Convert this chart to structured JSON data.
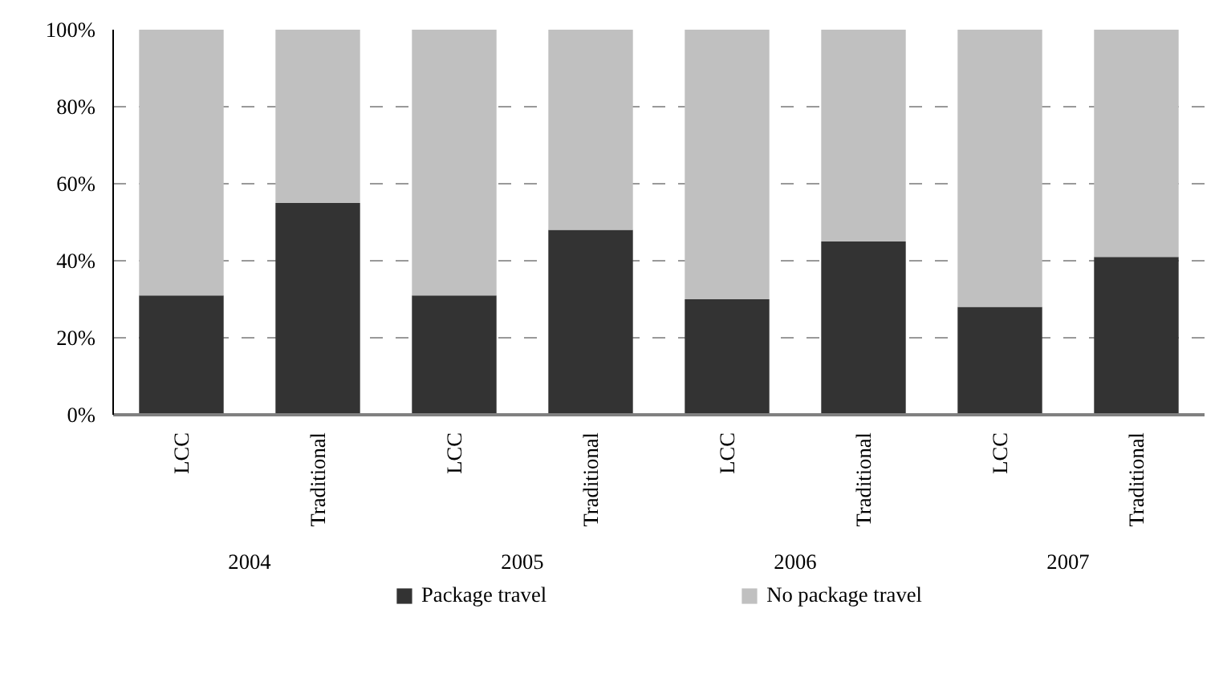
{
  "chart_data": {
    "type": "bar",
    "stacked": true,
    "categories": [
      "LCC",
      "Traditional",
      "LCC",
      "Traditional",
      "LCC",
      "Traditional",
      "LCC",
      "Traditional"
    ],
    "series": [
      {
        "name": "Package travel",
        "color": "#333333",
        "values": [
          31,
          55,
          31,
          48,
          30,
          45,
          28,
          41
        ]
      },
      {
        "name": "No package travel",
        "color": "#c0c0c0",
        "values": [
          69,
          45,
          69,
          52,
          70,
          55,
          72,
          59
        ]
      }
    ],
    "annotations": [
      "2004",
      "2005",
      "2006",
      "2007"
    ],
    "ylim": [
      0,
      100
    ],
    "yticks": [
      {
        "value": 0,
        "label": "0%"
      },
      {
        "value": 20,
        "label": "20%"
      },
      {
        "value": 40,
        "label": "40%"
      },
      {
        "value": 60,
        "label": "60%"
      },
      {
        "value": 80,
        "label": "80%"
      },
      {
        "value": 100,
        "label": "100%"
      }
    ],
    "grid": "y",
    "legend": "bottom"
  }
}
